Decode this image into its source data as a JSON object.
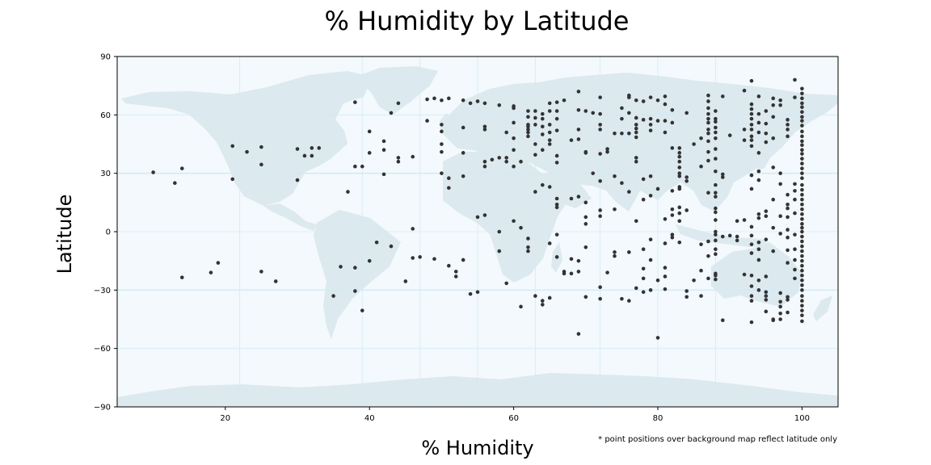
{
  "chart_data": {
    "type": "scatter",
    "title": "% Humidity by Latitude",
    "xlabel": "% Humidity",
    "ylabel": "Latitude",
    "note": "* point positions over background map reflect latitude only",
    "xlim": [
      5,
      105
    ],
    "ylim": [
      -90,
      90
    ],
    "x_ticks": [
      "20",
      "40",
      "60",
      "80",
      "100"
    ],
    "y_ticks": [
      "90",
      "60",
      "30",
      "0",
      "−30",
      "−60",
      "−90"
    ],
    "x_tick_values": [
      20,
      40,
      60,
      80,
      100
    ],
    "y_tick_values": [
      90,
      60,
      30,
      0,
      -30,
      -60,
      -90
    ],
    "colors": {
      "point": "#333333",
      "ocean": "#f3f9fc",
      "land": "#dce9ee",
      "grid": "#d4ebf5"
    },
    "points": [
      [
        10,
        30.5
      ],
      [
        13,
        25
      ],
      [
        14,
        32.5
      ],
      [
        14,
        -23.5
      ],
      [
        18,
        -21
      ],
      [
        19,
        -16
      ],
      [
        21,
        44
      ],
      [
        21,
        27
      ],
      [
        23,
        41
      ],
      [
        25,
        43.5
      ],
      [
        25,
        34.5
      ],
      [
        25,
        -20.5
      ],
      [
        27,
        -25.5
      ],
      [
        30,
        42.5
      ],
      [
        30,
        26.5
      ],
      [
        31,
        39
      ],
      [
        32,
        43
      ],
      [
        32,
        39
      ],
      [
        33,
        43
      ],
      [
        35,
        -33
      ],
      [
        36,
        -18
      ],
      [
        37,
        20.5
      ],
      [
        38,
        66.5
      ],
      [
        38,
        33.5
      ],
      [
        38,
        -18.5
      ],
      [
        38,
        -30.5
      ],
      [
        39,
        33.5
      ],
      [
        39,
        -40.5
      ],
      [
        40,
        51.5
      ],
      [
        40,
        40.5
      ],
      [
        40,
        -15
      ],
      [
        41,
        -5.5
      ],
      [
        42,
        46.5
      ],
      [
        42,
        42
      ],
      [
        42,
        29.5
      ],
      [
        43,
        61
      ],
      [
        43,
        -7.5
      ],
      [
        44,
        66
      ],
      [
        44,
        38
      ],
      [
        44,
        36
      ],
      [
        45,
        -25.5
      ],
      [
        46,
        38.5
      ],
      [
        46,
        1.5
      ],
      [
        46,
        -13.5
      ],
      [
        47,
        -13
      ],
      [
        48,
        68
      ],
      [
        48,
        57
      ],
      [
        49,
        68.5
      ],
      [
        49,
        -14
      ],
      [
        50,
        67.5
      ],
      [
        50,
        55
      ],
      [
        50,
        51.5
      ],
      [
        50,
        45
      ],
      [
        50,
        41
      ],
      [
        50,
        30
      ],
      [
        51,
        68.5
      ],
      [
        51,
        27.5
      ],
      [
        51,
        22.5
      ],
      [
        51,
        -17.5
      ],
      [
        52,
        -20.5
      ],
      [
        52,
        -23
      ],
      [
        53,
        67.5
      ],
      [
        53,
        53.5
      ],
      [
        53,
        40.5
      ],
      [
        53,
        28.5
      ],
      [
        53,
        -14.5
      ],
      [
        54,
        66
      ],
      [
        54,
        -32
      ],
      [
        55,
        67
      ],
      [
        55,
        7.5
      ],
      [
        55,
        -31
      ],
      [
        56,
        66
      ],
      [
        56,
        54
      ],
      [
        56,
        52.5
      ],
      [
        56,
        36
      ],
      [
        56,
        33.5
      ],
      [
        56,
        8.5
      ],
      [
        57,
        37
      ],
      [
        58,
        65
      ],
      [
        58,
        38
      ],
      [
        58,
        0
      ],
      [
        58,
        -10
      ],
      [
        59,
        51
      ],
      [
        59,
        38
      ],
      [
        59,
        36
      ],
      [
        59,
        -26.5
      ],
      [
        60,
        64.5
      ],
      [
        60,
        63.5
      ],
      [
        60,
        56
      ],
      [
        60,
        48
      ],
      [
        60,
        42
      ],
      [
        60,
        33.5
      ],
      [
        60,
        5.5
      ],
      [
        61,
        36
      ],
      [
        61,
        2
      ],
      [
        61,
        -38.5
      ],
      [
        62,
        62
      ],
      [
        62,
        59
      ],
      [
        62,
        55
      ],
      [
        62,
        54
      ],
      [
        62,
        52.5
      ],
      [
        62,
        51
      ],
      [
        62,
        49
      ],
      [
        62,
        -3.5
      ],
      [
        62,
        -8
      ],
      [
        62,
        -10
      ],
      [
        63,
        62
      ],
      [
        63,
        58.5
      ],
      [
        63,
        55
      ],
      [
        63,
        45
      ],
      [
        63,
        39.5
      ],
      [
        63,
        20.5
      ],
      [
        63,
        -33
      ],
      [
        64,
        60.5
      ],
      [
        64,
        58
      ],
      [
        64,
        54
      ],
      [
        64,
        50
      ],
      [
        64,
        42
      ],
      [
        64,
        24
      ],
      [
        64,
        -35.5
      ],
      [
        64,
        -37.5
      ],
      [
        65,
        66
      ],
      [
        65,
        62
      ],
      [
        65,
        55
      ],
      [
        65,
        51
      ],
      [
        65,
        47
      ],
      [
        65,
        45
      ],
      [
        65,
        23
      ],
      [
        65,
        -6
      ],
      [
        65,
        -34
      ],
      [
        66,
        66.5
      ],
      [
        66,
        62
      ],
      [
        66,
        58
      ],
      [
        66,
        52
      ],
      [
        66,
        39
      ],
      [
        66,
        35.5
      ],
      [
        66,
        17
      ],
      [
        66,
        14
      ],
      [
        66,
        12.5
      ],
      [
        66,
        -1.5
      ],
      [
        66,
        -13
      ],
      [
        67,
        -20.5
      ],
      [
        67,
        -21.5
      ],
      [
        67,
        67.5
      ],
      [
        68,
        47
      ],
      [
        68,
        17
      ],
      [
        68,
        -14
      ],
      [
        68,
        -21.5
      ],
      [
        69,
        72
      ],
      [
        69,
        62.5
      ],
      [
        69,
        52.5
      ],
      [
        69,
        47.5
      ],
      [
        69,
        18
      ],
      [
        69,
        -15
      ],
      [
        69,
        -20.5
      ],
      [
        69,
        -52.5
      ],
      [
        70,
        62
      ],
      [
        70,
        41
      ],
      [
        70,
        40.5
      ],
      [
        70,
        15
      ],
      [
        70,
        7.5
      ],
      [
        70,
        4
      ],
      [
        70,
        -8
      ],
      [
        70,
        -33.5
      ],
      [
        71,
        61
      ],
      [
        71,
        30
      ],
      [
        72,
        69
      ],
      [
        72,
        60.5
      ],
      [
        72,
        55
      ],
      [
        72,
        52.5
      ],
      [
        72,
        40
      ],
      [
        72,
        26
      ],
      [
        72,
        11
      ],
      [
        72,
        8
      ],
      [
        72,
        -28.5
      ],
      [
        72,
        -34.5
      ],
      [
        73,
        42.5
      ],
      [
        73,
        41
      ],
      [
        73,
        -21
      ],
      [
        74,
        50.5
      ],
      [
        74,
        28.5
      ],
      [
        74,
        11.5
      ],
      [
        74,
        -10.5
      ],
      [
        74,
        -12.5
      ],
      [
        75,
        63.5
      ],
      [
        75,
        58
      ],
      [
        75,
        50.5
      ],
      [
        75,
        25
      ],
      [
        75,
        -34.5
      ],
      [
        76,
        70
      ],
      [
        76,
        69
      ],
      [
        76,
        61
      ],
      [
        76,
        50.5
      ],
      [
        76,
        20.5
      ],
      [
        76,
        -10.5
      ],
      [
        76,
        -35.5
      ],
      [
        77,
        67.5
      ],
      [
        77,
        58.5
      ],
      [
        77,
        55
      ],
      [
        77,
        53
      ],
      [
        77,
        51
      ],
      [
        77,
        48.5
      ],
      [
        77,
        38
      ],
      [
        77,
        36
      ],
      [
        77,
        5.5
      ],
      [
        77,
        -29
      ],
      [
        78,
        67
      ],
      [
        78,
        57.5
      ],
      [
        78,
        27
      ],
      [
        78,
        16.5
      ],
      [
        78,
        -9
      ],
      [
        78,
        -19
      ],
      [
        78,
        -24
      ],
      [
        78,
        -31
      ],
      [
        79,
        69
      ],
      [
        79,
        58
      ],
      [
        79,
        55
      ],
      [
        79,
        52
      ],
      [
        79,
        28.5
      ],
      [
        79,
        18.5
      ],
      [
        79,
        -4
      ],
      [
        79,
        -14.5
      ],
      [
        79,
        -30
      ],
      [
        80,
        67.5
      ],
      [
        80,
        57
      ],
      [
        80,
        22
      ],
      [
        80,
        -25
      ],
      [
        80,
        -54.5
      ],
      [
        81,
        69.5
      ],
      [
        81,
        65.5
      ],
      [
        81,
        57
      ],
      [
        81,
        51
      ],
      [
        81,
        6.5
      ],
      [
        81,
        -6
      ],
      [
        81,
        -18.5
      ],
      [
        81,
        -23
      ],
      [
        81,
        -29.5
      ],
      [
        82,
        62.5
      ],
      [
        82,
        56
      ],
      [
        82,
        43
      ],
      [
        82,
        21
      ],
      [
        82,
        11.5
      ],
      [
        82,
        8.5
      ],
      [
        82,
        -1.5
      ],
      [
        82,
        -3
      ],
      [
        83,
        43
      ],
      [
        83,
        40.5
      ],
      [
        83,
        38.5
      ],
      [
        83,
        36
      ],
      [
        83,
        33
      ],
      [
        83,
        30
      ],
      [
        83,
        28.5
      ],
      [
        83,
        23
      ],
      [
        83,
        22
      ],
      [
        83,
        12.5
      ],
      [
        83,
        9.5
      ],
      [
        83,
        5.5
      ],
      [
        83,
        -5.5
      ],
      [
        84,
        61
      ],
      [
        84,
        28
      ],
      [
        84,
        26
      ],
      [
        84,
        11
      ],
      [
        84,
        -30.5
      ],
      [
        84,
        -33.5
      ],
      [
        85,
        45
      ],
      [
        85,
        -25
      ],
      [
        86,
        48
      ],
      [
        86,
        33.5
      ],
      [
        86,
        -6.5
      ],
      [
        86,
        -20
      ],
      [
        86,
        -33
      ],
      [
        87,
        70
      ],
      [
        87,
        67
      ],
      [
        87,
        63.5
      ],
      [
        87,
        60.5
      ],
      [
        87,
        58
      ],
      [
        87,
        56
      ],
      [
        87,
        52.5
      ],
      [
        87,
        50.5
      ],
      [
        87,
        46.5
      ],
      [
        87,
        41
      ],
      [
        87,
        36.5
      ],
      [
        87,
        20
      ],
      [
        87,
        -5
      ],
      [
        87,
        -12.5
      ],
      [
        87,
        -24
      ],
      [
        88,
        62
      ],
      [
        88,
        58
      ],
      [
        88,
        56.5
      ],
      [
        88,
        53.5
      ],
      [
        88,
        51
      ],
      [
        88,
        48
      ],
      [
        88,
        42.5
      ],
      [
        88,
        37.5
      ],
      [
        88,
        31
      ],
      [
        88,
        24
      ],
      [
        88,
        20
      ],
      [
        88,
        18
      ],
      [
        88,
        12
      ],
      [
        88,
        10
      ],
      [
        88,
        6
      ],
      [
        88,
        0
      ],
      [
        88,
        -1.5
      ],
      [
        88,
        -4.5
      ],
      [
        88,
        -9
      ],
      [
        88,
        -11.5
      ],
      [
        88,
        -21.5
      ],
      [
        88,
        -22.5
      ],
      [
        88,
        -24.5
      ],
      [
        89,
        69.5
      ],
      [
        89,
        29.5
      ],
      [
        89,
        28
      ],
      [
        89,
        -2.5
      ],
      [
        89,
        -45.5
      ],
      [
        90,
        49.5
      ],
      [
        90,
        -2
      ],
      [
        91,
        5.5
      ],
      [
        91,
        -2.5
      ],
      [
        91,
        -4.5
      ],
      [
        92,
        72.5
      ],
      [
        92,
        52.5
      ],
      [
        92,
        47
      ],
      [
        92,
        6
      ],
      [
        92,
        -22
      ],
      [
        93,
        77.5
      ],
      [
        93,
        65.5
      ],
      [
        93,
        63
      ],
      [
        93,
        60.5
      ],
      [
        93,
        58
      ],
      [
        93,
        55
      ],
      [
        93,
        52.5
      ],
      [
        93,
        49
      ],
      [
        93,
        47
      ],
      [
        93,
        44
      ],
      [
        93,
        29
      ],
      [
        93,
        22
      ],
      [
        93,
        2.5
      ],
      [
        93,
        -2
      ],
      [
        93,
        -6.5
      ],
      [
        93,
        -11
      ],
      [
        93,
        -22.5
      ],
      [
        93,
        -28
      ],
      [
        93,
        -33
      ],
      [
        93,
        -35.5
      ],
      [
        93,
        -46.5
      ],
      [
        94,
        69.5
      ],
      [
        94,
        60.5
      ],
      [
        94,
        56
      ],
      [
        94,
        51
      ],
      [
        94,
        40.5
      ],
      [
        94,
        31
      ],
      [
        94,
        26.5
      ],
      [
        94,
        9
      ],
      [
        94,
        7
      ],
      [
        94,
        -5.5
      ],
      [
        94,
        -9
      ],
      [
        94,
        -14.5
      ],
      [
        94,
        -25
      ],
      [
        94,
        -30
      ],
      [
        95,
        62
      ],
      [
        95,
        55.5
      ],
      [
        95,
        50.5
      ],
      [
        95,
        46
      ],
      [
        95,
        10.5
      ],
      [
        95,
        8
      ],
      [
        95,
        -4
      ],
      [
        95,
        -23
      ],
      [
        95,
        -31
      ],
      [
        95,
        -33
      ],
      [
        95,
        -35
      ],
      [
        95,
        -41
      ],
      [
        96,
        68.5
      ],
      [
        96,
        65
      ],
      [
        96,
        59
      ],
      [
        96,
        48
      ],
      [
        96,
        33
      ],
      [
        96,
        16.5
      ],
      [
        96,
        2
      ],
      [
        96,
        -10
      ],
      [
        96,
        -45
      ],
      [
        96,
        -45.5
      ],
      [
        97,
        67.5
      ],
      [
        97,
        65
      ],
      [
        97,
        30
      ],
      [
        97,
        24.5
      ],
      [
        97,
        8
      ],
      [
        97,
        -1
      ],
      [
        97,
        -31.5
      ],
      [
        97,
        -42
      ],
      [
        97,
        -45
      ],
      [
        97,
        -36
      ],
      [
        97,
        -38.5
      ],
      [
        98,
        57.5
      ],
      [
        98,
        55
      ],
      [
        98,
        52.5
      ],
      [
        98,
        49
      ],
      [
        98,
        19
      ],
      [
        98,
        14
      ],
      [
        98,
        12
      ],
      [
        98,
        7.5
      ],
      [
        98,
        1
      ],
      [
        98,
        -3
      ],
      [
        98,
        -9.5
      ],
      [
        98,
        -16
      ],
      [
        98,
        -33.5
      ],
      [
        98,
        -35
      ],
      [
        98,
        -41.5
      ],
      [
        99,
        78
      ],
      [
        99,
        69
      ],
      [
        99,
        24.5
      ],
      [
        99,
        21
      ],
      [
        99,
        16.5
      ],
      [
        99,
        9.5
      ],
      [
        99,
        -1.5
      ],
      [
        99,
        -9
      ],
      [
        99,
        -14.5
      ],
      [
        99,
        -19.5
      ],
      [
        99,
        -24
      ]
    ],
    "dense_column": {
      "x": 100,
      "y": [
        73.5,
        71,
        68.5,
        66,
        64,
        61.5,
        59,
        57,
        54.5,
        51.5,
        49,
        46.5,
        44.5,
        42,
        40,
        37.5,
        35,
        32.5,
        30,
        27.5,
        24,
        21.5,
        19,
        16.5,
        14,
        11.5,
        9,
        6.5,
        4,
        2,
        0,
        -2.5,
        -5,
        -7.5,
        -10,
        -12.5,
        -15,
        -17.5,
        -20,
        -22.5,
        -25,
        -27.5,
        -30,
        -33,
        -35.5,
        -38,
        -40.5,
        -43,
        -46
      ]
    }
  }
}
